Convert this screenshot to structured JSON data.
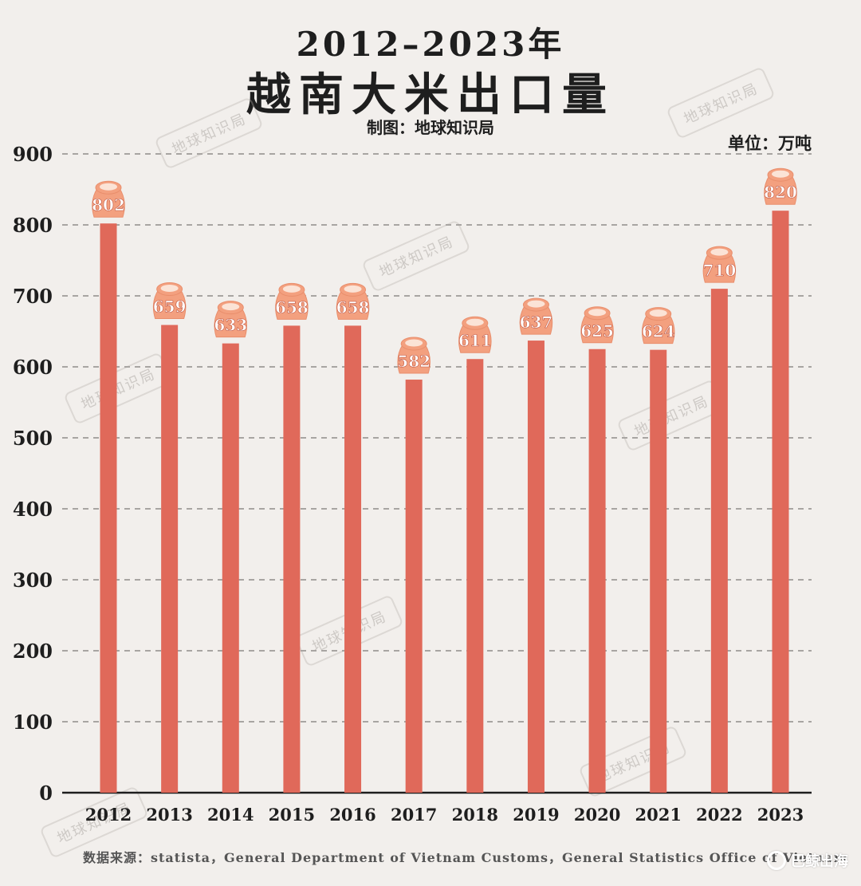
{
  "header": {
    "title_line1": "2012–2023年",
    "title_line2": "越南大米出口量",
    "credit": "制图：地球知识局",
    "unit": "单位：万吨"
  },
  "watermark": "地球知识局",
  "footer": {
    "source": "数据来源：statista，General Department of Vietnam Customs，General Statistics Office of Vietnam",
    "brand": "巴鲸出海"
  },
  "colors": {
    "bar": "#e0695a",
    "bag": "#f3a07f",
    "bag_top": "#fbe3d6",
    "grid": "#a8a5a2",
    "axis": "#1e1e1e"
  },
  "chart_data": {
    "type": "bar",
    "categories": [
      "2012",
      "2013",
      "2014",
      "2015",
      "2016",
      "2017",
      "2018",
      "2019",
      "2020",
      "2021",
      "2022",
      "2023"
    ],
    "values": [
      802,
      659,
      633,
      658,
      658,
      582,
      611,
      637,
      625,
      624,
      710,
      820
    ],
    "ylim": [
      0,
      900
    ],
    "yticks": [
      0,
      100,
      200,
      300,
      400,
      500,
      600,
      700,
      800,
      900
    ],
    "grid": true,
    "xlabel": "",
    "ylabel": ""
  }
}
